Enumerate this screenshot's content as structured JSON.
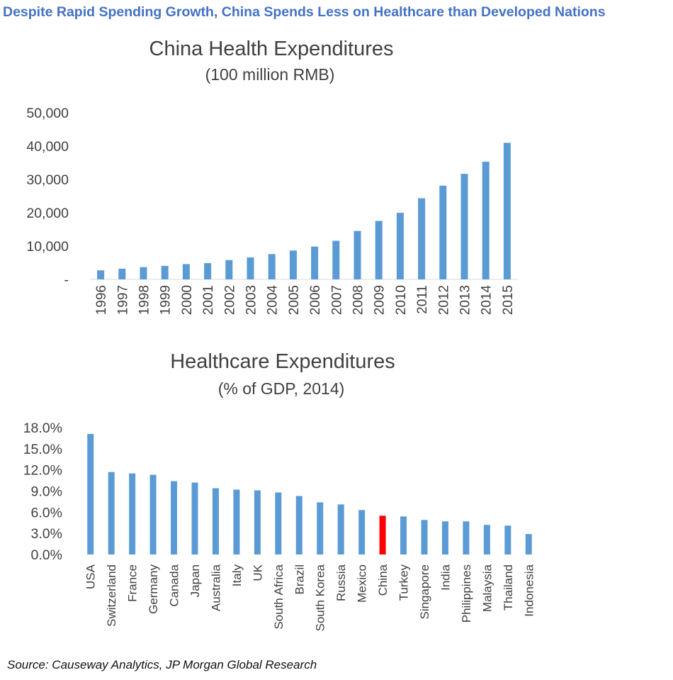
{
  "headline": "Despite Rapid Spending Growth, China Spends Less on Healthcare than Developed Nations",
  "source": "Source: Causeway Analytics, JP Morgan Global Research",
  "colors": {
    "headline": "#4472c4",
    "bar": "#5b9bd5",
    "highlight": "#ff0000",
    "text": "#404040"
  },
  "chart_data": [
    {
      "type": "bar",
      "title": "China Health Expenditures",
      "subtitle": "(100 million RMB)",
      "xlabel": "",
      "ylabel": "",
      "categories": [
        "1996",
        "1997",
        "1998",
        "1999",
        "2000",
        "2001",
        "2002",
        "2003",
        "2004",
        "2005",
        "2006",
        "2007",
        "2008",
        "2009",
        "2010",
        "2011",
        "2012",
        "2013",
        "2014",
        "2015"
      ],
      "values": [
        2710,
        3197,
        3679,
        4047,
        4587,
        4880,
        5791,
        6584,
        7590,
        8660,
        9843,
        11574,
        14535,
        17542,
        19980,
        24346,
        28119,
        31669,
        35312,
        40975
      ],
      "ylim": [
        0,
        50000
      ],
      "yticks": [
        "-",
        "10,000",
        "20,000",
        "30,000",
        "40,000",
        "50,000"
      ],
      "grid": false,
      "legend": "none"
    },
    {
      "type": "bar",
      "title": "Healthcare Expenditures",
      "subtitle": "(% of GDP, 2014)",
      "xlabel": "",
      "ylabel": "",
      "categories": [
        "USA",
        "Switzerland",
        "France",
        "Germany",
        "Canada",
        "Japan",
        "Australia",
        "Italy",
        "UK",
        "South Africa",
        "Brazil",
        "South Korea",
        "Russia",
        "Mexico",
        "China",
        "Turkey",
        "Singapore",
        "India",
        "Philippines",
        "Malaysia",
        "Thailand",
        "Indonesia"
      ],
      "values": [
        17.1,
        11.7,
        11.5,
        11.3,
        10.4,
        10.2,
        9.4,
        9.2,
        9.1,
        8.8,
        8.3,
        7.4,
        7.1,
        6.3,
        5.5,
        5.4,
        4.9,
        4.7,
        4.7,
        4.2,
        4.1,
        2.9
      ],
      "highlight": "China",
      "ylim": [
        0,
        18
      ],
      "yticks": [
        "0.0%",
        "3.0%",
        "6.0%",
        "9.0%",
        "12.0%",
        "15.0%",
        "18.0%"
      ],
      "grid": false,
      "legend": "none"
    }
  ]
}
